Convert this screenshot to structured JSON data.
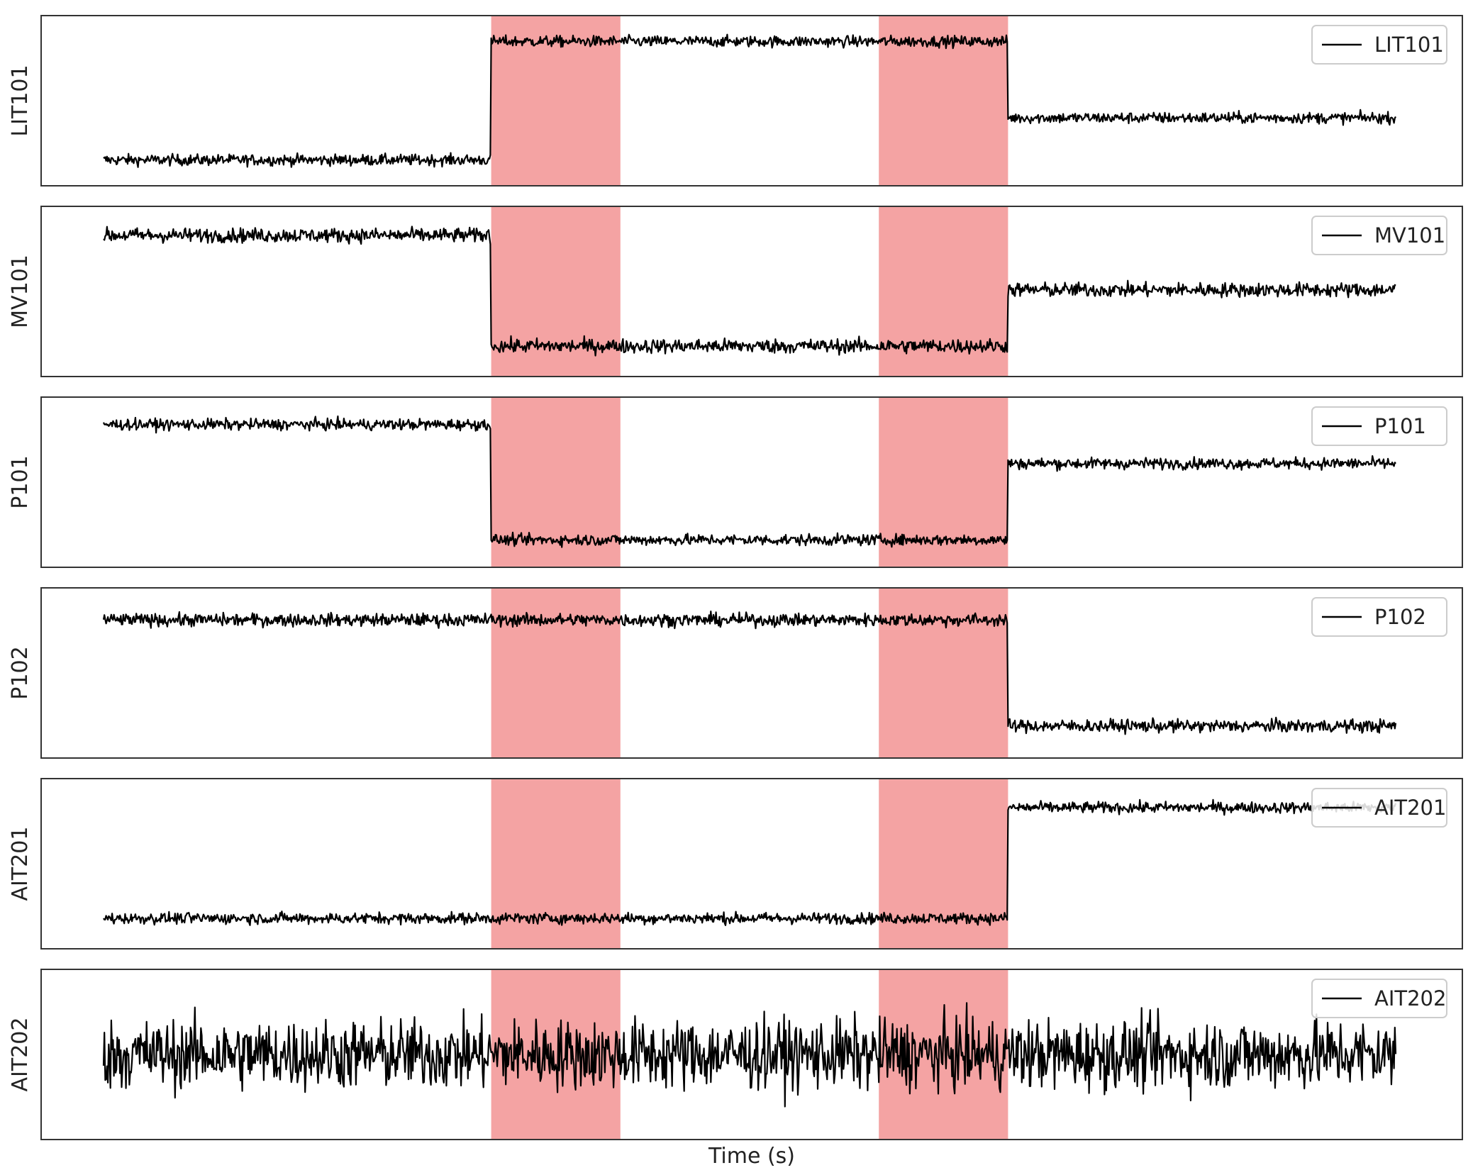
{
  "chart_data": {
    "type": "line",
    "xlabel": "Time (s)",
    "grid": false,
    "legend_position": "upper right",
    "colors": {
      "line": "#000000",
      "attack_band": "#f4a3a3",
      "frame": "#333333"
    },
    "attack_windows": [
      [
        0.3,
        0.4
      ],
      [
        0.6,
        0.7
      ]
    ],
    "x_range": [
      0,
      1
    ],
    "panels": [
      {
        "ylabel": "LIT101",
        "legend": "LIT101",
        "segments": [
          {
            "x": [
              0.0,
              0.3
            ],
            "level": 0.12
          },
          {
            "x": [
              0.3,
              0.7
            ],
            "level": 0.88
          },
          {
            "x": [
              0.7,
              1.0
            ],
            "level": 0.39
          }
        ],
        "noise": 0.035,
        "ylim": [
          0,
          1
        ]
      },
      {
        "ylabel": "MV101",
        "legend": "MV101",
        "segments": [
          {
            "x": [
              0.0,
              0.3
            ],
            "level": 0.86
          },
          {
            "x": [
              0.3,
              0.7
            ],
            "level": 0.15
          },
          {
            "x": [
              0.7,
              1.0
            ],
            "level": 0.51
          }
        ],
        "noise": 0.045,
        "ylim": [
          0,
          1
        ]
      },
      {
        "ylabel": "P101",
        "legend": "P101",
        "segments": [
          {
            "x": [
              0.0,
              0.3
            ],
            "level": 0.87
          },
          {
            "x": [
              0.3,
              0.7
            ],
            "level": 0.13
          },
          {
            "x": [
              0.7,
              1.0
            ],
            "level": 0.62
          }
        ],
        "noise": 0.035,
        "ylim": [
          0,
          1
        ]
      },
      {
        "ylabel": "P102",
        "legend": "P102",
        "segments": [
          {
            "x": [
              0.0,
              0.7
            ],
            "level": 0.84
          },
          {
            "x": [
              0.7,
              1.0
            ],
            "level": 0.16
          }
        ],
        "noise": 0.04,
        "ylim": [
          0,
          1
        ]
      },
      {
        "ylabel": "AIT201",
        "legend": "AIT201",
        "segments": [
          {
            "x": [
              0.0,
              0.7
            ],
            "level": 0.15
          },
          {
            "x": [
              0.7,
              1.0
            ],
            "level": 0.86
          }
        ],
        "noise": 0.035,
        "ylim": [
          0,
          1
        ]
      },
      {
        "ylabel": "AIT202",
        "legend": "AIT202",
        "segments": [
          {
            "x": [
              0.0,
              1.0
            ],
            "level": 0.5
          }
        ],
        "noise": 0.22,
        "ylim": [
          0,
          1
        ]
      }
    ]
  }
}
